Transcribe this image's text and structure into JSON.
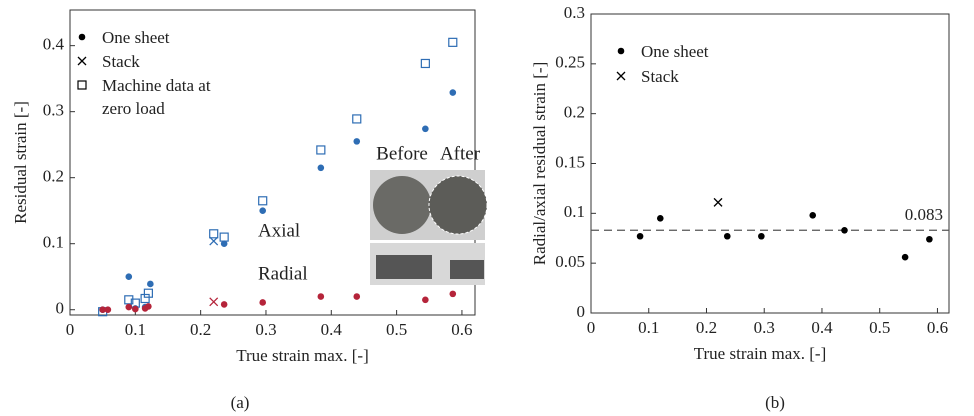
{
  "chart_data": [
    {
      "type": "scatter",
      "xlabel": "True strain max. [-]",
      "ylabel": "Residual strain [-]",
      "xlim": [
        0,
        0.62
      ],
      "ylim": [
        -0.008,
        0.454
      ],
      "xticks": [
        0,
        0.1,
        0.2,
        0.3,
        0.4,
        0.5,
        0.6
      ],
      "yticks": [
        0,
        0.1,
        0.2,
        0.3,
        0.4
      ],
      "legend": [
        {
          "name": "One sheet",
          "marker": "dot"
        },
        {
          "name": "Stack",
          "marker": "x"
        },
        {
          "name": "Machine data at zero load",
          "marker": "square"
        }
      ],
      "series": [
        {
          "label": "Axial",
          "color": "#2e6db4",
          "marker": "dot",
          "x": [
            0.05,
            0.09,
            0.1,
            0.115,
            0.123,
            0.236,
            0.295,
            0.384,
            0.439,
            0.544,
            0.586
          ],
          "values": [
            0.0,
            0.05,
            0.002,
            0.004,
            0.039,
            0.1,
            0.15,
            0.215,
            0.255,
            0.274,
            0.329
          ]
        },
        {
          "color": "#2e6db4",
          "marker": "x",
          "x": [
            0.22
          ],
          "values": [
            0.104
          ]
        },
        {
          "color": "#2e6db4",
          "marker": "square",
          "x": [
            0.05,
            0.09,
            0.1,
            0.115,
            0.12,
            0.22,
            0.236,
            0.295,
            0.384,
            0.439,
            0.544,
            0.586
          ],
          "values": [
            -0.003,
            0.015,
            0.01,
            0.017,
            0.025,
            0.115,
            0.11,
            0.165,
            0.242,
            0.289,
            0.373,
            0.405
          ]
        },
        {
          "label": "Radial",
          "color": "#b5243a",
          "marker": "dot",
          "x": [
            0.05,
            0.058,
            0.09,
            0.1,
            0.115,
            0.12,
            0.236,
            0.295,
            0.384,
            0.439,
            0.544,
            0.586
          ],
          "values": [
            0.0,
            0.0,
            0.004,
            0.001,
            0.002,
            0.005,
            0.008,
            0.011,
            0.02,
            0.02,
            0.015,
            0.024
          ]
        },
        {
          "color": "#b5243a",
          "marker": "x",
          "x": [
            0.22
          ],
          "values": [
            0.012
          ]
        }
      ]
    },
    {
      "type": "scatter",
      "xlabel": "True strain max. [-]",
      "ylabel": "Radial/axial residual strain [-]",
      "xlim": [
        0,
        0.62
      ],
      "ylim": [
        0,
        0.3
      ],
      "xticks": [
        0,
        0.1,
        0.2,
        0.3,
        0.4,
        0.5,
        0.6
      ],
      "yticks": [
        0,
        0.05,
        0.1,
        0.15,
        0.2,
        0.25,
        0.3
      ],
      "legend": [
        {
          "name": "One sheet",
          "marker": "dot"
        },
        {
          "name": "Stack",
          "marker": "x"
        }
      ],
      "reference_line": 0.083,
      "series": [
        {
          "color": "#000000",
          "marker": "dot",
          "x": [
            0.085,
            0.12,
            0.236,
            0.295,
            0.384,
            0.439,
            0.544,
            0.586
          ],
          "values": [
            0.077,
            0.095,
            0.077,
            0.077,
            0.098,
            0.083,
            0.056,
            0.074
          ]
        },
        {
          "color": "#000000",
          "marker": "x",
          "x": [
            0.22
          ],
          "values": [
            0.111
          ]
        }
      ]
    }
  ],
  "inset": {
    "before": "Before",
    "after": "After"
  },
  "panel_labels": [
    "(a)",
    "(b)"
  ]
}
